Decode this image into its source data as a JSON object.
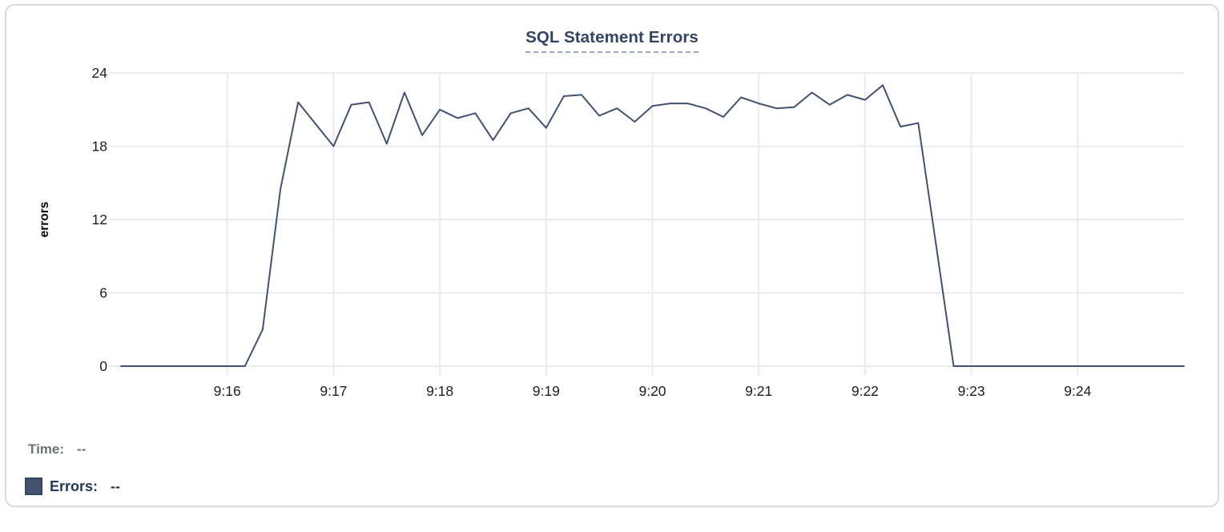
{
  "card": {
    "title": "SQL Statement Errors"
  },
  "legend": {
    "time_label": "Time:",
    "time_value": "--",
    "errors_label": "Errors:",
    "errors_value": "--"
  },
  "colors": {
    "line": "#42526e",
    "grid": "#ebebeb",
    "tick_text": "#1d1d1f",
    "axis_label": "#000000",
    "title": "#344563",
    "title_underline": "#9aa4b6",
    "time_gray": "#6d7076",
    "errors_navy": "#253858",
    "card_border": "#dadada",
    "swatch": "#42526e"
  },
  "chart_data": {
    "type": "line",
    "title": "SQL Statement Errors",
    "xlabel": "",
    "ylabel": "errors",
    "ylim": [
      0,
      24
    ],
    "yticks": [
      0,
      6,
      12,
      18,
      24
    ],
    "xticks": [
      "9:16",
      "9:17",
      "9:18",
      "9:19",
      "9:20",
      "9:21",
      "9:22",
      "9:23",
      "9:24"
    ],
    "x_range": [
      "9:15:00",
      "9:25:00"
    ],
    "sample_interval_seconds": 10,
    "grid": true,
    "legend_position": "bottom-left",
    "series": [
      {
        "name": "Errors",
        "color": "#42526e",
        "x": [
          "9:15:00",
          "9:15:10",
          "9:15:20",
          "9:15:30",
          "9:15:40",
          "9:15:50",
          "9:16:00",
          "9:16:10",
          "9:16:20",
          "9:16:30",
          "9:16:40",
          "9:16:50",
          "9:17:00",
          "9:17:10",
          "9:17:20",
          "9:17:30",
          "9:17:40",
          "9:17:50",
          "9:18:00",
          "9:18:10",
          "9:18:20",
          "9:18:30",
          "9:18:40",
          "9:18:50",
          "9:19:00",
          "9:19:10",
          "9:19:20",
          "9:19:30",
          "9:19:40",
          "9:19:50",
          "9:20:00",
          "9:20:10",
          "9:20:20",
          "9:20:30",
          "9:20:40",
          "9:20:50",
          "9:21:00",
          "9:21:10",
          "9:21:20",
          "9:21:30",
          "9:21:40",
          "9:21:50",
          "9:22:00",
          "9:22:10",
          "9:22:20",
          "9:22:30",
          "9:22:40",
          "9:22:50",
          "9:23:00",
          "9:23:10",
          "9:23:20",
          "9:23:30",
          "9:23:40",
          "9:23:50",
          "9:24:00",
          "9:24:10",
          "9:24:20",
          "9:24:30",
          "9:24:40",
          "9:24:50",
          "9:25:00"
        ],
        "values": [
          0,
          0,
          0,
          0,
          0,
          0,
          0,
          0,
          3,
          14.5,
          21.6,
          19.8,
          18,
          21.4,
          21.6,
          18.2,
          22.4,
          18.9,
          21,
          20.3,
          20.7,
          18.5,
          20.7,
          21.1,
          19.5,
          22.1,
          22.2,
          20.5,
          21.1,
          20,
          21.3,
          21.5,
          21.5,
          21.1,
          20.4,
          22,
          21.5,
          21.1,
          21.2,
          22.4,
          21.4,
          22.2,
          21.8,
          23,
          19.6,
          19.9,
          10,
          0,
          0,
          0,
          0,
          0,
          0,
          0,
          0,
          0,
          0,
          0,
          0,
          0,
          0
        ]
      }
    ]
  }
}
